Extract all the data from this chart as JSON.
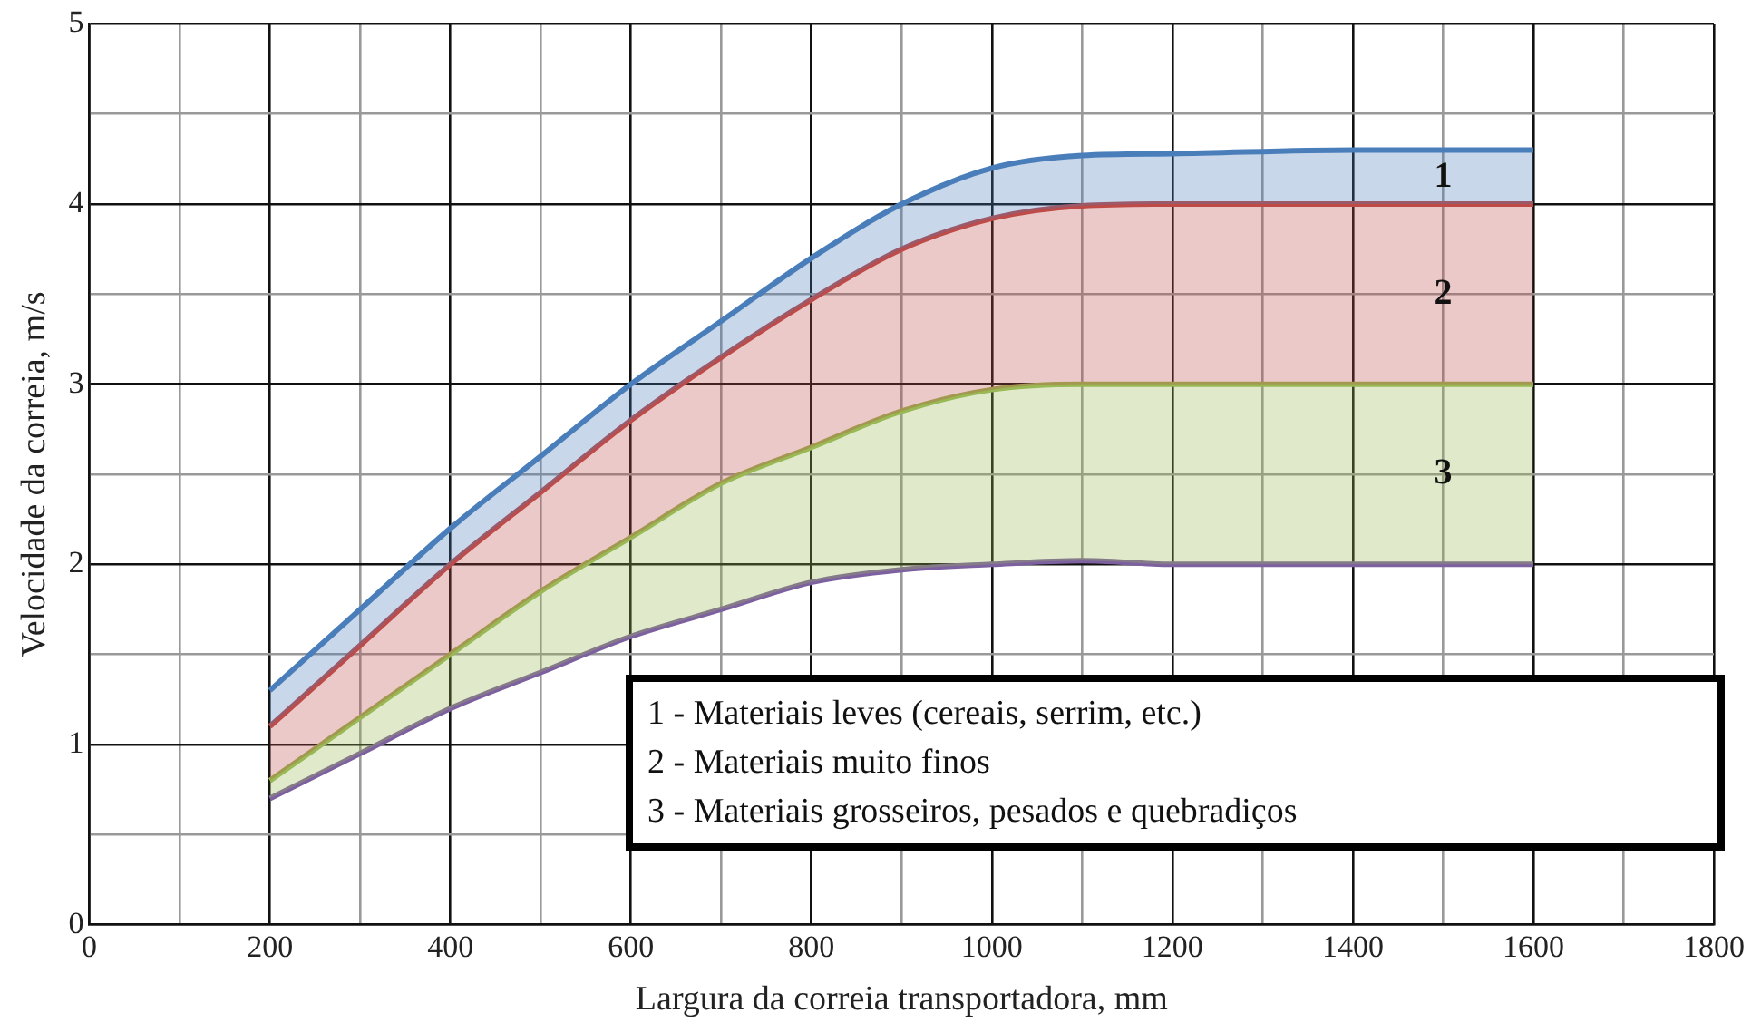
{
  "chart_data": {
    "type": "line",
    "xlabel": "Largura da correia transportadora, mm",
    "ylabel": "Velocidade da correia, m/s",
    "x": [
      200,
      300,
      400,
      500,
      600,
      700,
      800,
      900,
      1000,
      1100,
      1200,
      1400,
      1600
    ],
    "series": [
      {
        "type": "area",
        "name": "1",
        "color": "#4a7ebb",
        "values": [
          1.3,
          1.75,
          2.2,
          2.6,
          3.0,
          3.35,
          3.7,
          4.0,
          4.2,
          4.27,
          4.28,
          4.3,
          4.3
        ]
      },
      {
        "type": "area",
        "name": "2",
        "color": "#be4b48",
        "values": [
          1.1,
          1.55,
          2.0,
          2.4,
          2.8,
          3.15,
          3.47,
          3.75,
          3.92,
          3.99,
          4.0,
          4.0,
          4.0
        ]
      },
      {
        "type": "area",
        "name": "3",
        "color": "#98b954",
        "values": [
          0.8,
          1.15,
          1.5,
          1.85,
          2.15,
          2.45,
          2.65,
          2.85,
          2.97,
          3.0,
          3.0,
          3.0,
          3.0
        ]
      },
      {
        "type": "line",
        "color": "#7d60a0",
        "values": [
          0.7,
          0.95,
          1.2,
          1.4,
          1.6,
          1.75,
          1.9,
          1.97,
          2.0,
          2.02,
          2.0,
          2.0,
          2.0
        ]
      }
    ],
    "xlim": [
      0,
      1800
    ],
    "xticks": [
      0,
      {
        "value": 100,
        "label": null
      },
      200,
      {
        "value": 300,
        "label": null
      },
      400,
      {
        "value": 500,
        "label": null
      },
      600,
      {
        "value": 700,
        "label": null
      },
      800,
      {
        "value": 900,
        "label": null
      },
      1000,
      {
        "value": 1100,
        "label": null
      },
      1200,
      {
        "value": 1300,
        "label": null
      },
      1400,
      {
        "value": 1500,
        "label": null
      },
      1600,
      {
        "value": 1700,
        "label": null
      },
      1800
    ],
    "ylim": [
      0,
      5
    ],
    "yticks": [
      0,
      {
        "value": 0.5,
        "label": null
      },
      1,
      {
        "value": 1.5,
        "label": null
      },
      2,
      {
        "value": 2.5,
        "label": null
      },
      3,
      {
        "value": 3.5,
        "label": null
      },
      4,
      {
        "value": 4.5,
        "label": null
      },
      5
    ],
    "grid": true,
    "marker": "none",
    "line_style": "solid",
    "annotations": [
      "1 - Materiais leves (cereais, serrim, etc.)",
      "2 - Materiais muito finos",
      "3 - Materiais grosseiros, pesados e quebradiços"
    ]
  }
}
